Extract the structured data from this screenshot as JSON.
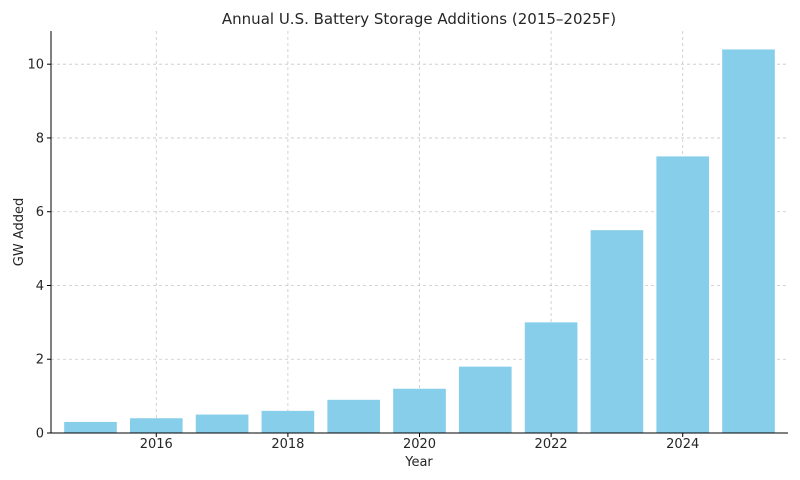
{
  "chart_data": {
    "type": "bar",
    "title": "Annual U.S. Battery Storage Additions (2015–2025F)",
    "xlabel": "Year",
    "ylabel": "GW Added",
    "x": [
      2015,
      2016,
      2017,
      2018,
      2019,
      2020,
      2021,
      2022,
      2023,
      2024,
      2025
    ],
    "values": [
      0.3,
      0.4,
      0.5,
      0.6,
      0.9,
      1.2,
      1.8,
      3.0,
      5.5,
      7.5,
      10.4
    ],
    "xlim": [
      2014.4,
      2025.6
    ],
    "ylim": [
      0,
      10.9
    ],
    "xticks": [
      2016,
      2018,
      2020,
      2022,
      2024
    ],
    "yticks": [
      0,
      2,
      4,
      6,
      8,
      10
    ],
    "bar_color": "#87CEEB",
    "grid": true
  }
}
